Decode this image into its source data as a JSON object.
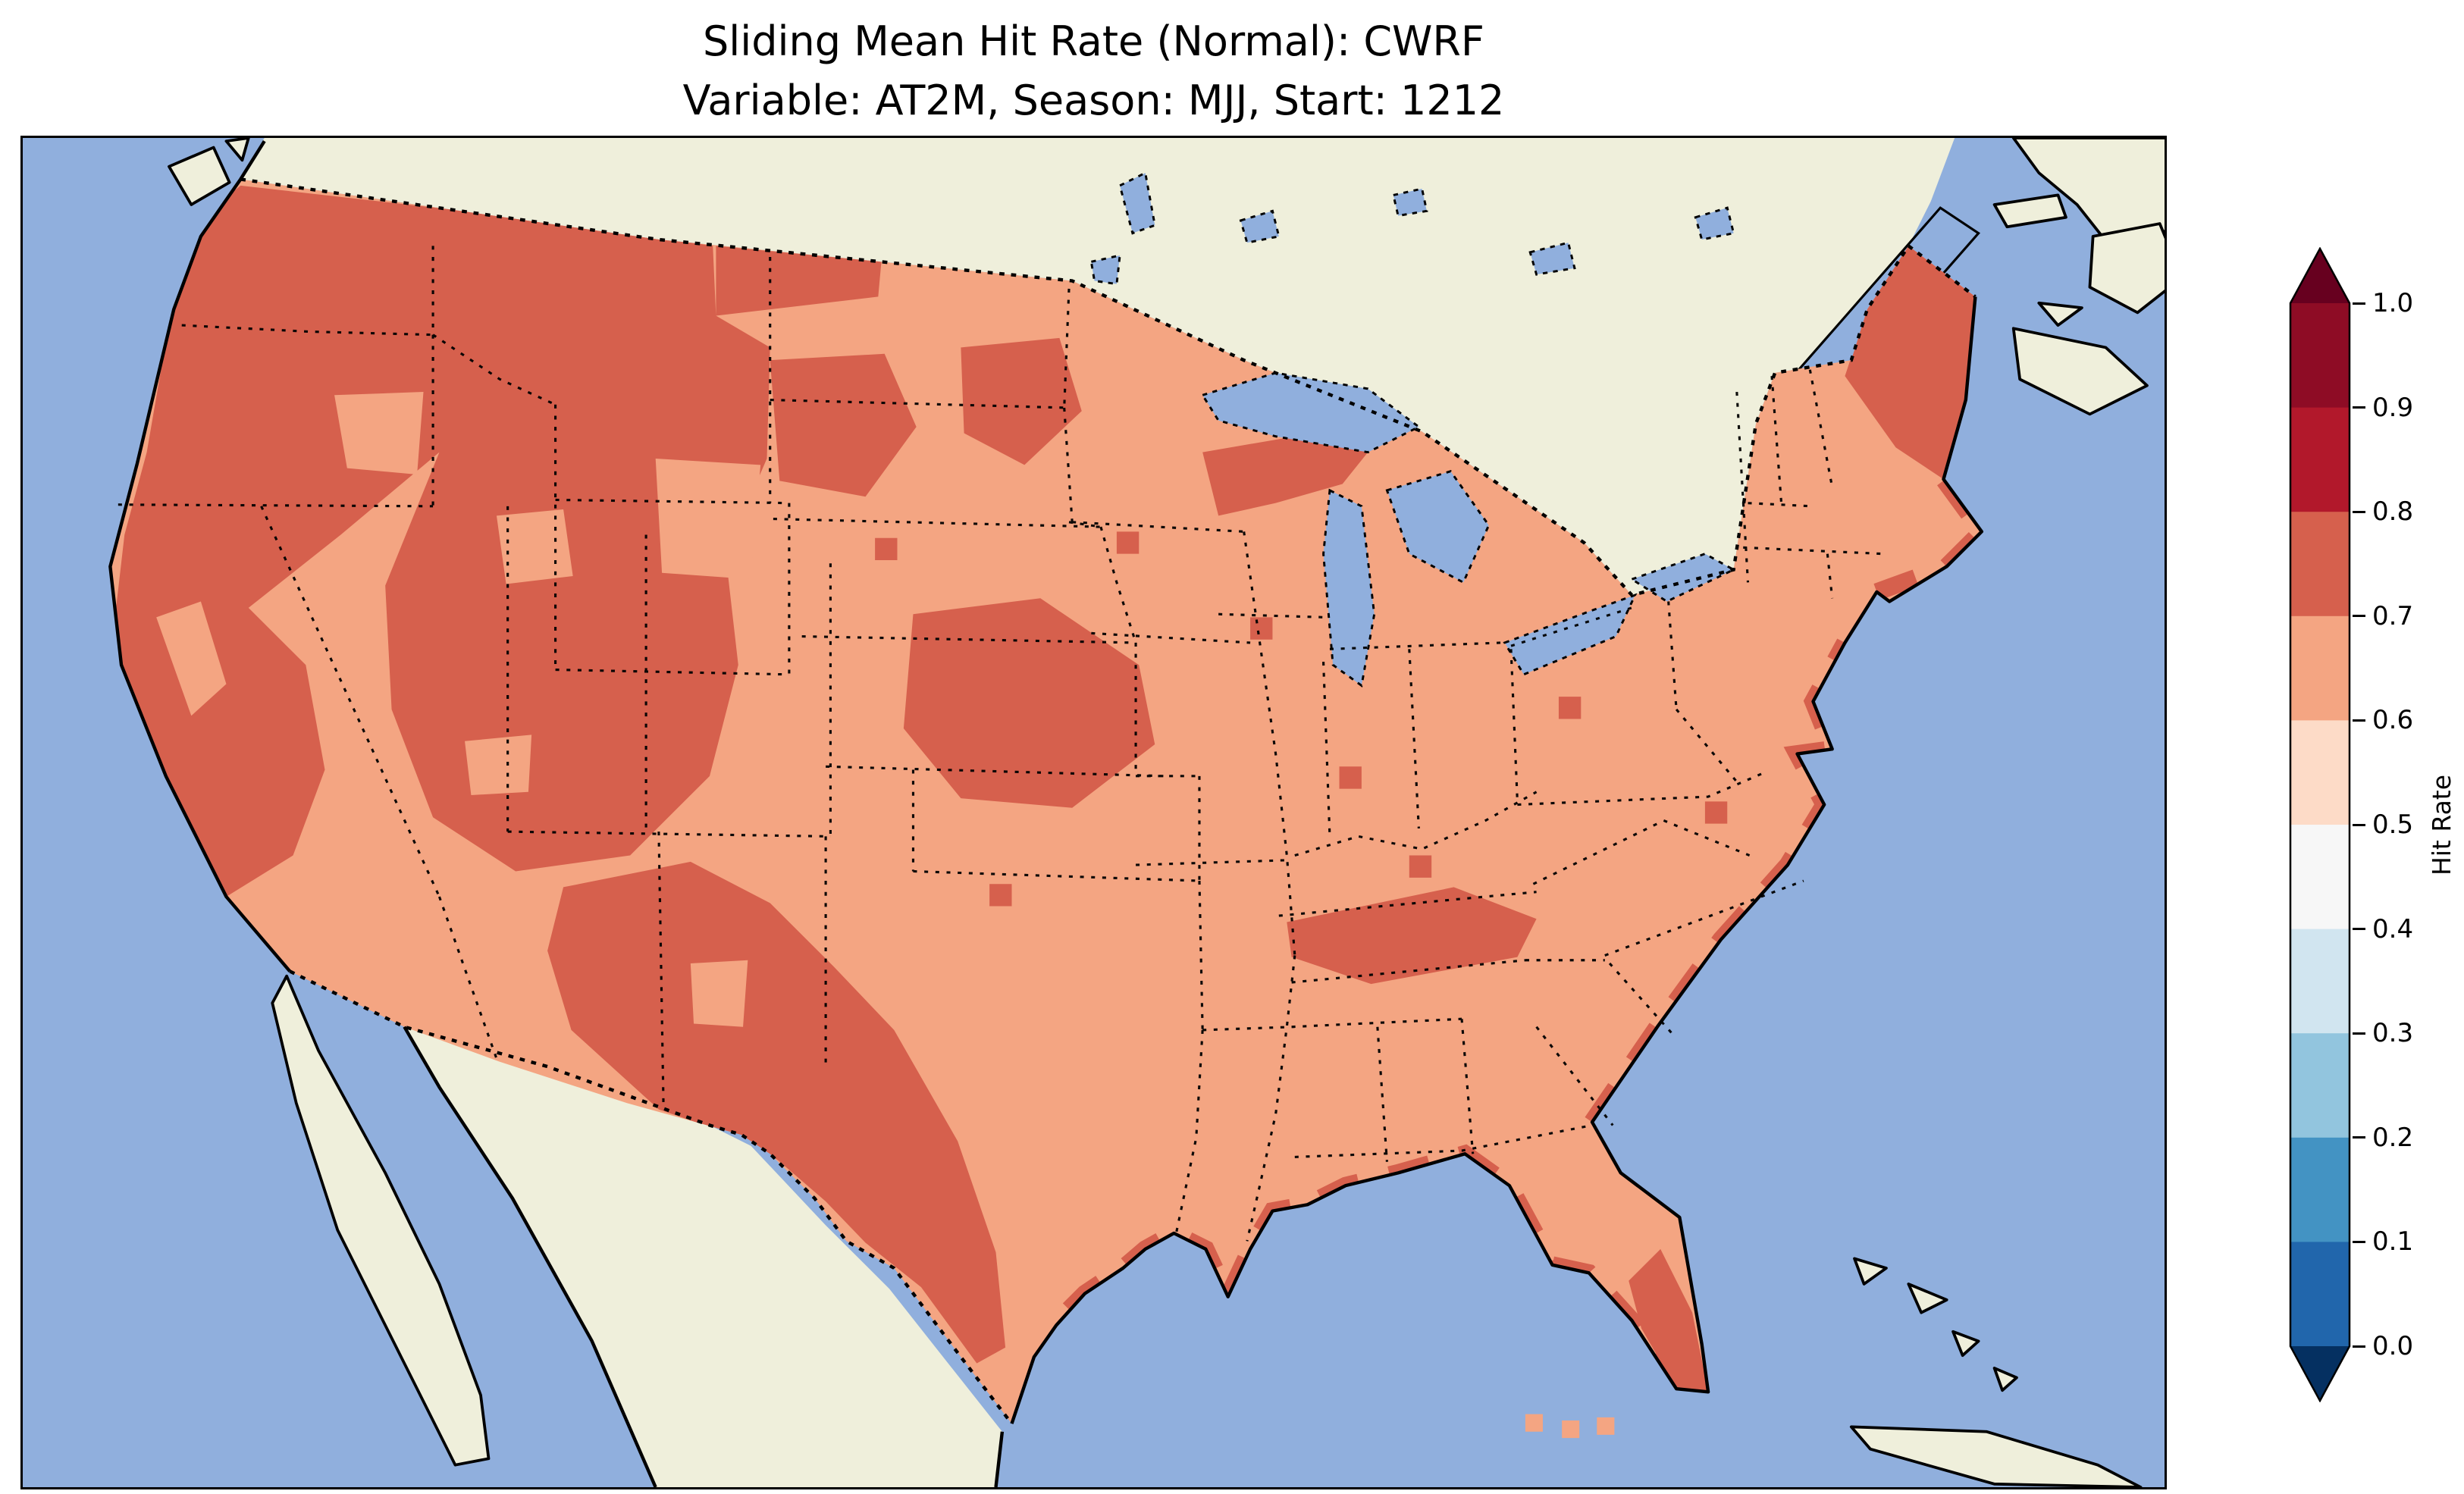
{
  "figure": {
    "title_line1": "Sliding Mean Hit Rate (Normal): CWRF",
    "title_line2": "Variable: AT2M, Season: MJJ, Start: 1212"
  },
  "chart_data": {
    "type": "heatmap",
    "title": "Sliding Mean Hit Rate (Normal): CWRF",
    "subtitle": "Variable: AT2M, Season: MJJ, Start: 1212",
    "model": "CWRF",
    "variable": "AT2M",
    "season": "MJJ",
    "start": "1212",
    "colorbar": {
      "label": "Hit Rate",
      "ticks": [
        "1.0",
        "0.9",
        "0.8",
        "0.7",
        "0.6",
        "0.5",
        "0.4",
        "0.3",
        "0.2",
        "0.1",
        "0.0"
      ],
      "extend_over_color": "#67001f",
      "extend_under_color": "#053061",
      "segments_top_to_bottom": [
        {
          "range": "0.9-1.0",
          "color": "#8e0c25"
        },
        {
          "range": "0.8-0.9",
          "color": "#b2182b"
        },
        {
          "range": "0.7-0.8",
          "color": "#d6604d"
        },
        {
          "range": "0.6-0.7",
          "color": "#f4a582"
        },
        {
          "range": "0.5-0.6",
          "color": "#fddbc7"
        },
        {
          "range": "0.4-0.5",
          "color": "#f7f7f7"
        },
        {
          "range": "0.3-0.4",
          "color": "#d1e5f0"
        },
        {
          "range": "0.2-0.3",
          "color": "#92c5de"
        },
        {
          "range": "0.1-0.2",
          "color": "#4393c3"
        },
        {
          "range": "0.0-0.1",
          "color": "#2166ac"
        }
      ]
    },
    "colors": {
      "ocean": "#90afdd",
      "land": "#efefdb",
      "cell_low": "#f4a582",
      "cell_high": "#d6604d",
      "border": "#000000"
    },
    "layout": {
      "colorbar_position": "right vertical, extended triangles both ends",
      "projection": "Lambert conformal over CONUS",
      "state_borders": "dotted",
      "coastlines": "solid"
    },
    "map_regions": [
      {
        "region": "Most of CONUS",
        "hit_rate": "0.6-0.7"
      },
      {
        "region": "Pacific Northwest (WA, OR, N Idaho, N Montana strip)",
        "hit_rate": "0.7-0.8"
      },
      {
        "region": "Northern and coastal California",
        "hit_rate": "0.7-0.8"
      },
      {
        "region": "Great Basin and central Rockies (NV, UT, W CO, WY)",
        "hit_rate": "0.7-0.8"
      },
      {
        "region": "New Mexico and west/south Texas (Rio Grande)",
        "hit_rate": "0.7-0.8"
      },
      {
        "region": "Central Plains (NE/KS/MO area)",
        "hit_rate": "0.7-0.8"
      },
      {
        "region": "Western Dakotas and northern Minnesota patches",
        "hit_rate": "0.7-0.8"
      },
      {
        "region": "Northern Wisconsin / Upper Michigan",
        "hit_rate": "0.7-0.8"
      },
      {
        "region": "Tennessee Valley",
        "hit_rate": "0.7-0.8"
      },
      {
        "region": "Gulf and Atlantic coastal fringe",
        "hit_rate": "0.7-0.8"
      },
      {
        "region": "Maine",
        "hit_rate": "0.7-0.8"
      },
      {
        "region": "South Florida",
        "hit_rate": "0.7-0.8"
      }
    ],
    "values_range_observed": [
      0.6,
      0.8
    ]
  }
}
